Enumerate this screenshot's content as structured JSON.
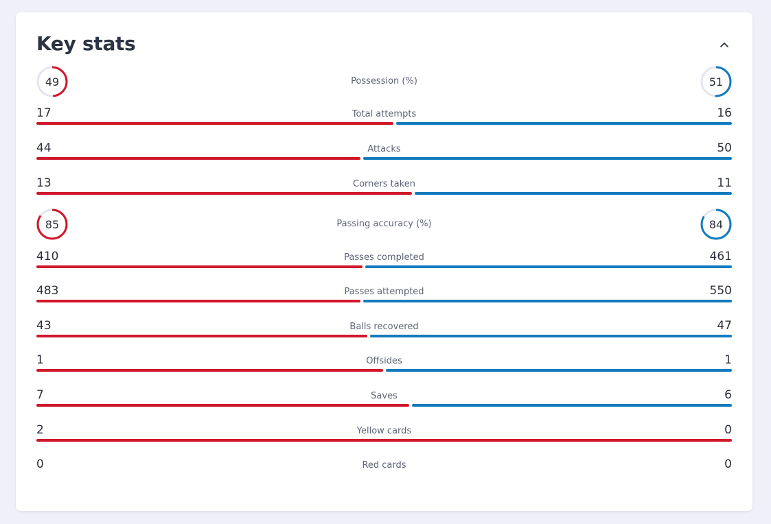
{
  "title": "Key stats",
  "colors": {
    "home": "#d0182b",
    "away": "#137bbd",
    "track": "#e3e6ee"
  },
  "rings": [
    {
      "label": "Possession (%)",
      "home": 49,
      "away": 51
    },
    {
      "label": "Passing accuracy (%)",
      "home": 85,
      "away": 84
    }
  ],
  "bars": [
    {
      "label": "Total attempts",
      "home": 17,
      "away": 16
    },
    {
      "label": "Attacks",
      "home": 44,
      "away": 50
    },
    {
      "label": "Corners taken",
      "home": 13,
      "away": 11
    },
    {
      "label": "Passes completed",
      "home": 410,
      "away": 461
    },
    {
      "label": "Passes attempted",
      "home": 483,
      "away": 550
    },
    {
      "label": "Balls recovered",
      "home": 43,
      "away": 47
    },
    {
      "label": "Offsides",
      "home": 1,
      "away": 1
    },
    {
      "label": "Saves",
      "home": 7,
      "away": 6
    },
    {
      "label": "Yellow cards",
      "home": 2,
      "away": 0
    },
    {
      "label": "Red cards",
      "home": 0,
      "away": 0
    }
  ]
}
